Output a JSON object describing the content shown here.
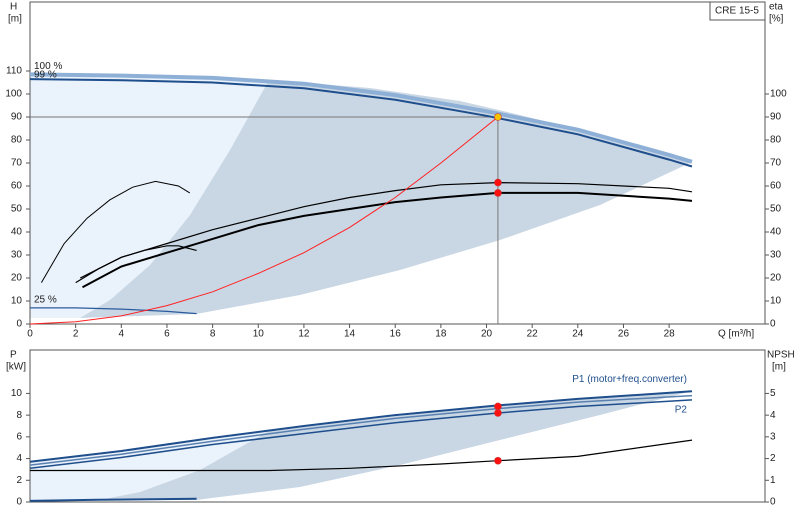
{
  "chart_data": [
    {
      "type": "line",
      "title": "CRE 15-5",
      "ylabel": "H",
      "yunit": "[m]",
      "y2label": "eta",
      "y2unit": "[%]",
      "xlabel": "Q [m³/h]",
      "xlim": [
        0,
        32.2
      ],
      "xticks": [
        0,
        2,
        4,
        6,
        8,
        10,
        12,
        14,
        16,
        18,
        20,
        22,
        24,
        26,
        28
      ],
      "ylim": [
        0,
        140
      ],
      "yticks": [
        0,
        10,
        20,
        30,
        40,
        50,
        60,
        70,
        80,
        90,
        100,
        110
      ],
      "y2lim": [
        0,
        140
      ],
      "y2ticks": [
        0,
        10,
        20,
        30,
        40,
        50,
        60,
        70,
        80,
        90,
        100
      ],
      "series": [
        {
          "name": "100 %",
          "color": "#8fb0d6",
          "width": 4,
          "x": [
            0,
            4,
            8,
            12,
            16,
            20,
            24,
            28,
            29
          ],
          "values": [
            108.5,
            108,
            107,
            104.5,
            99.5,
            92.5,
            84.5,
            73.5,
            70.5
          ]
        },
        {
          "name": "99 %",
          "color": "#1f4e8c",
          "width": 2,
          "x": [
            0,
            4,
            8,
            12,
            16,
            20,
            24,
            28,
            29
          ],
          "values": [
            106.5,
            106,
            105,
            102.5,
            97.5,
            90.5,
            82.5,
            71.5,
            68.5
          ]
        },
        {
          "name": "25 %",
          "color": "#2a5a9c",
          "width": 1.2,
          "x": [
            0,
            2,
            4,
            6,
            7.3
          ],
          "values": [
            7,
            7,
            6.5,
            5.5,
            4.5
          ]
        },
        {
          "color": "#000000",
          "width": 1.2,
          "axis": "y2",
          "x": [
            2.2,
            4,
            6,
            8,
            10,
            12,
            14,
            16,
            18,
            20.5,
            24,
            28,
            29
          ],
          "values": [
            20,
            29,
            35,
            41,
            46,
            51,
            55,
            58,
            60.5,
            61.5,
            61,
            59,
            57.5
          ]
        },
        {
          "color": "#000000",
          "width": 2,
          "axis": "y2",
          "x": [
            2.3,
            4,
            6,
            8,
            10,
            12,
            14,
            16,
            18,
            20.5,
            24,
            28,
            29
          ],
          "values": [
            16,
            25,
            31,
            37,
            43,
            47,
            50,
            53,
            55,
            57,
            57,
            54.5,
            53.5
          ]
        },
        {
          "color": "#000000",
          "width": 1,
          "axis": "y2",
          "x": [
            0.5,
            1.5,
            2.5,
            3.5,
            4.5,
            5.5,
            6.5,
            7
          ],
          "values": [
            18,
            35,
            46,
            54,
            59.5,
            62,
            60,
            57
          ]
        },
        {
          "color": "#000000",
          "width": 1.2,
          "axis": "y2",
          "x": [
            2,
            3,
            4,
            5,
            6,
            6.5,
            7.3
          ],
          "values": [
            18,
            24,
            29,
            32,
            34,
            34,
            32
          ]
        },
        {
          "color": "#ff2020",
          "width": 1,
          "x": [
            0,
            2,
            4,
            6,
            8,
            10,
            12,
            14,
            16,
            18,
            20.5
          ],
          "values": [
            0,
            1,
            3.5,
            8,
            14,
            22,
            31,
            42,
            55,
            70,
            90
          ]
        }
      ],
      "markers": [
        {
          "x": 20.5,
          "y": 90,
          "color": "#f5c400"
        },
        {
          "x": 20.5,
          "y": 61.5,
          "color": "#ff1010"
        },
        {
          "x": 20.5,
          "y": 57,
          "color": "#ff1010"
        }
      ]
    },
    {
      "type": "line",
      "ylabel": "P",
      "yunit": "[kW]",
      "y2label": "NPSH",
      "y2unit": "[m]",
      "xlim": [
        0,
        32.2
      ],
      "ylim": [
        0,
        14
      ],
      "yticks": [
        0,
        2,
        4,
        6,
        8,
        10
      ],
      "y2lim": [
        0,
        7
      ],
      "y2ticks": [
        0,
        1,
        2,
        3,
        4,
        5
      ],
      "series": [
        {
          "name": "P1 (motor+freq.converter)",
          "color": "#1f4e8c",
          "width": 2,
          "x": [
            0,
            4,
            8,
            12,
            16,
            20.5,
            24,
            29
          ],
          "values": [
            3.7,
            4.7,
            5.9,
            7,
            8,
            8.9,
            9.5,
            10.2
          ]
        },
        {
          "color": "#5a80b0",
          "width": 1.5,
          "x": [
            0,
            4,
            8,
            12,
            16,
            20.5,
            24,
            29
          ],
          "values": [
            3.4,
            4.4,
            5.6,
            6.7,
            7.7,
            8.6,
            9.2,
            9.8
          ]
        },
        {
          "name": "P2",
          "color": "#1f4e8c",
          "width": 1.5,
          "x": [
            0,
            4,
            8,
            12,
            16,
            20.5,
            24,
            29
          ],
          "values": [
            3.1,
            4.1,
            5.3,
            6.3,
            7.3,
            8.2,
            8.8,
            9.4
          ]
        },
        {
          "color": "#1f4e8c",
          "width": 2,
          "x": [
            0,
            3,
            7.3
          ],
          "values": [
            0.1,
            0.2,
            0.3
          ]
        },
        {
          "color": "#000000",
          "width": 1.2,
          "axis": "y2",
          "x": [
            0,
            6,
            10.5,
            14,
            18,
            20.5,
            24,
            29
          ],
          "values": [
            1.45,
            1.45,
            1.45,
            1.55,
            1.75,
            1.9,
            2.1,
            2.85
          ]
        }
      ],
      "markers": [
        {
          "x": 20.5,
          "y": 8.8,
          "color": "#ff1010"
        },
        {
          "x": 20.5,
          "y": 8.2,
          "color": "#ff1010"
        },
        {
          "x": 20.5,
          "y": 1.9,
          "axis": "y2",
          "color": "#ff1010"
        }
      ]
    }
  ]
}
